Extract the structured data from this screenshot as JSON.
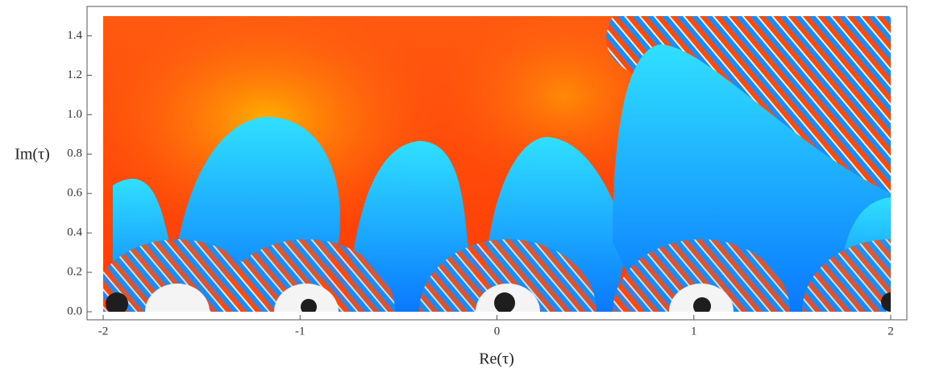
{
  "chart_data": {
    "type": "density",
    "xlabel": "Re(τ)",
    "ylabel": "Im(τ)",
    "xlim": [
      -2,
      2
    ],
    "ylim": [
      0,
      1.5
    ],
    "xticks": [
      -2,
      -1,
      0,
      1,
      2
    ],
    "yticks": [
      {
        "value": 0,
        "label": "0.0"
      },
      0.2,
      0.4,
      0.6,
      0.8,
      {
        "value": 1,
        "label": "1.0"
      },
      1.2,
      1.4
    ]
  }
}
